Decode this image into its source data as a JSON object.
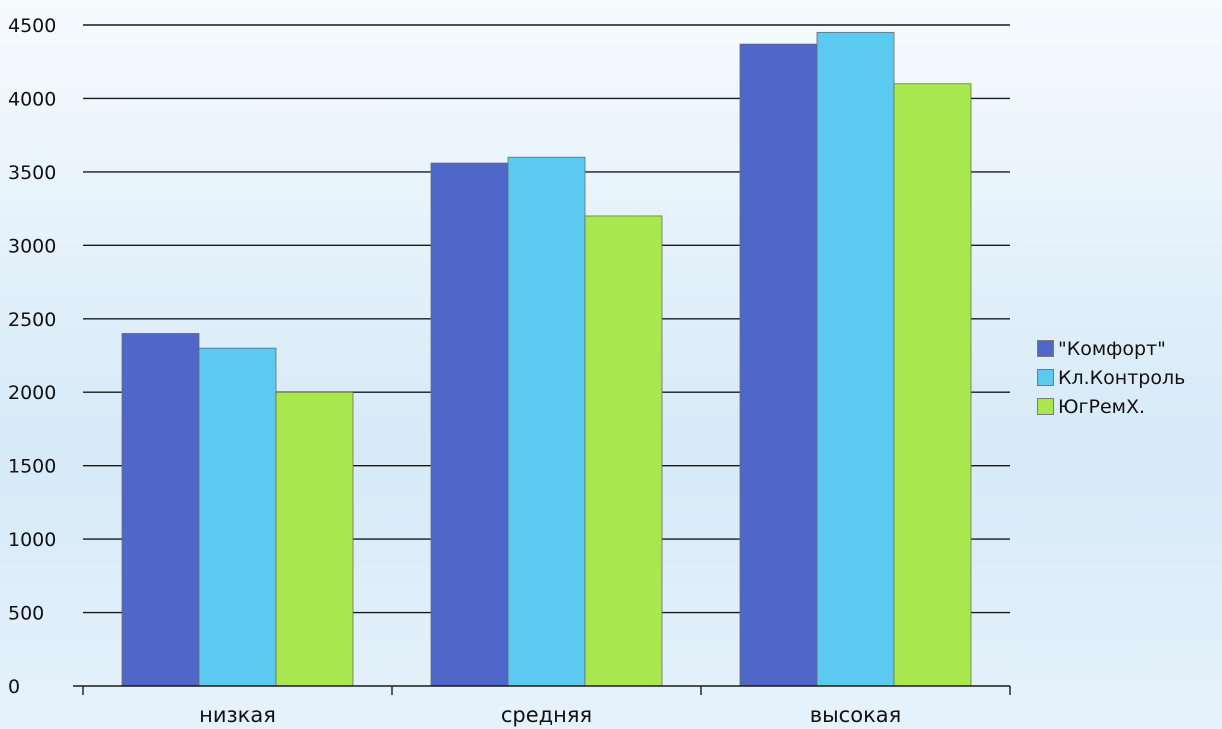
{
  "chart_data": {
    "type": "bar",
    "title": "",
    "xlabel": "",
    "ylabel": "",
    "categories": [
      "низкая",
      "средняя",
      "высокая"
    ],
    "series": [
      {
        "name": "\"Комфорт\"",
        "color": "#4f67c9",
        "values": [
          2400,
          3560,
          4370
        ]
      },
      {
        "name": "Кл.Контроль",
        "color": "#5ccaf0",
        "values": [
          2300,
          3600,
          4450
        ]
      },
      {
        "name": "ЮгРемХ.",
        "color": "#a8e84e",
        "values": [
          2000,
          3200,
          4100
        ]
      }
    ],
    "ylim": [
      0,
      4500
    ],
    "yticks": [
      0,
      500,
      1000,
      1500,
      2000,
      2500,
      3000,
      3500,
      4000,
      4500
    ],
    "grid": true,
    "legend_position": "right"
  }
}
